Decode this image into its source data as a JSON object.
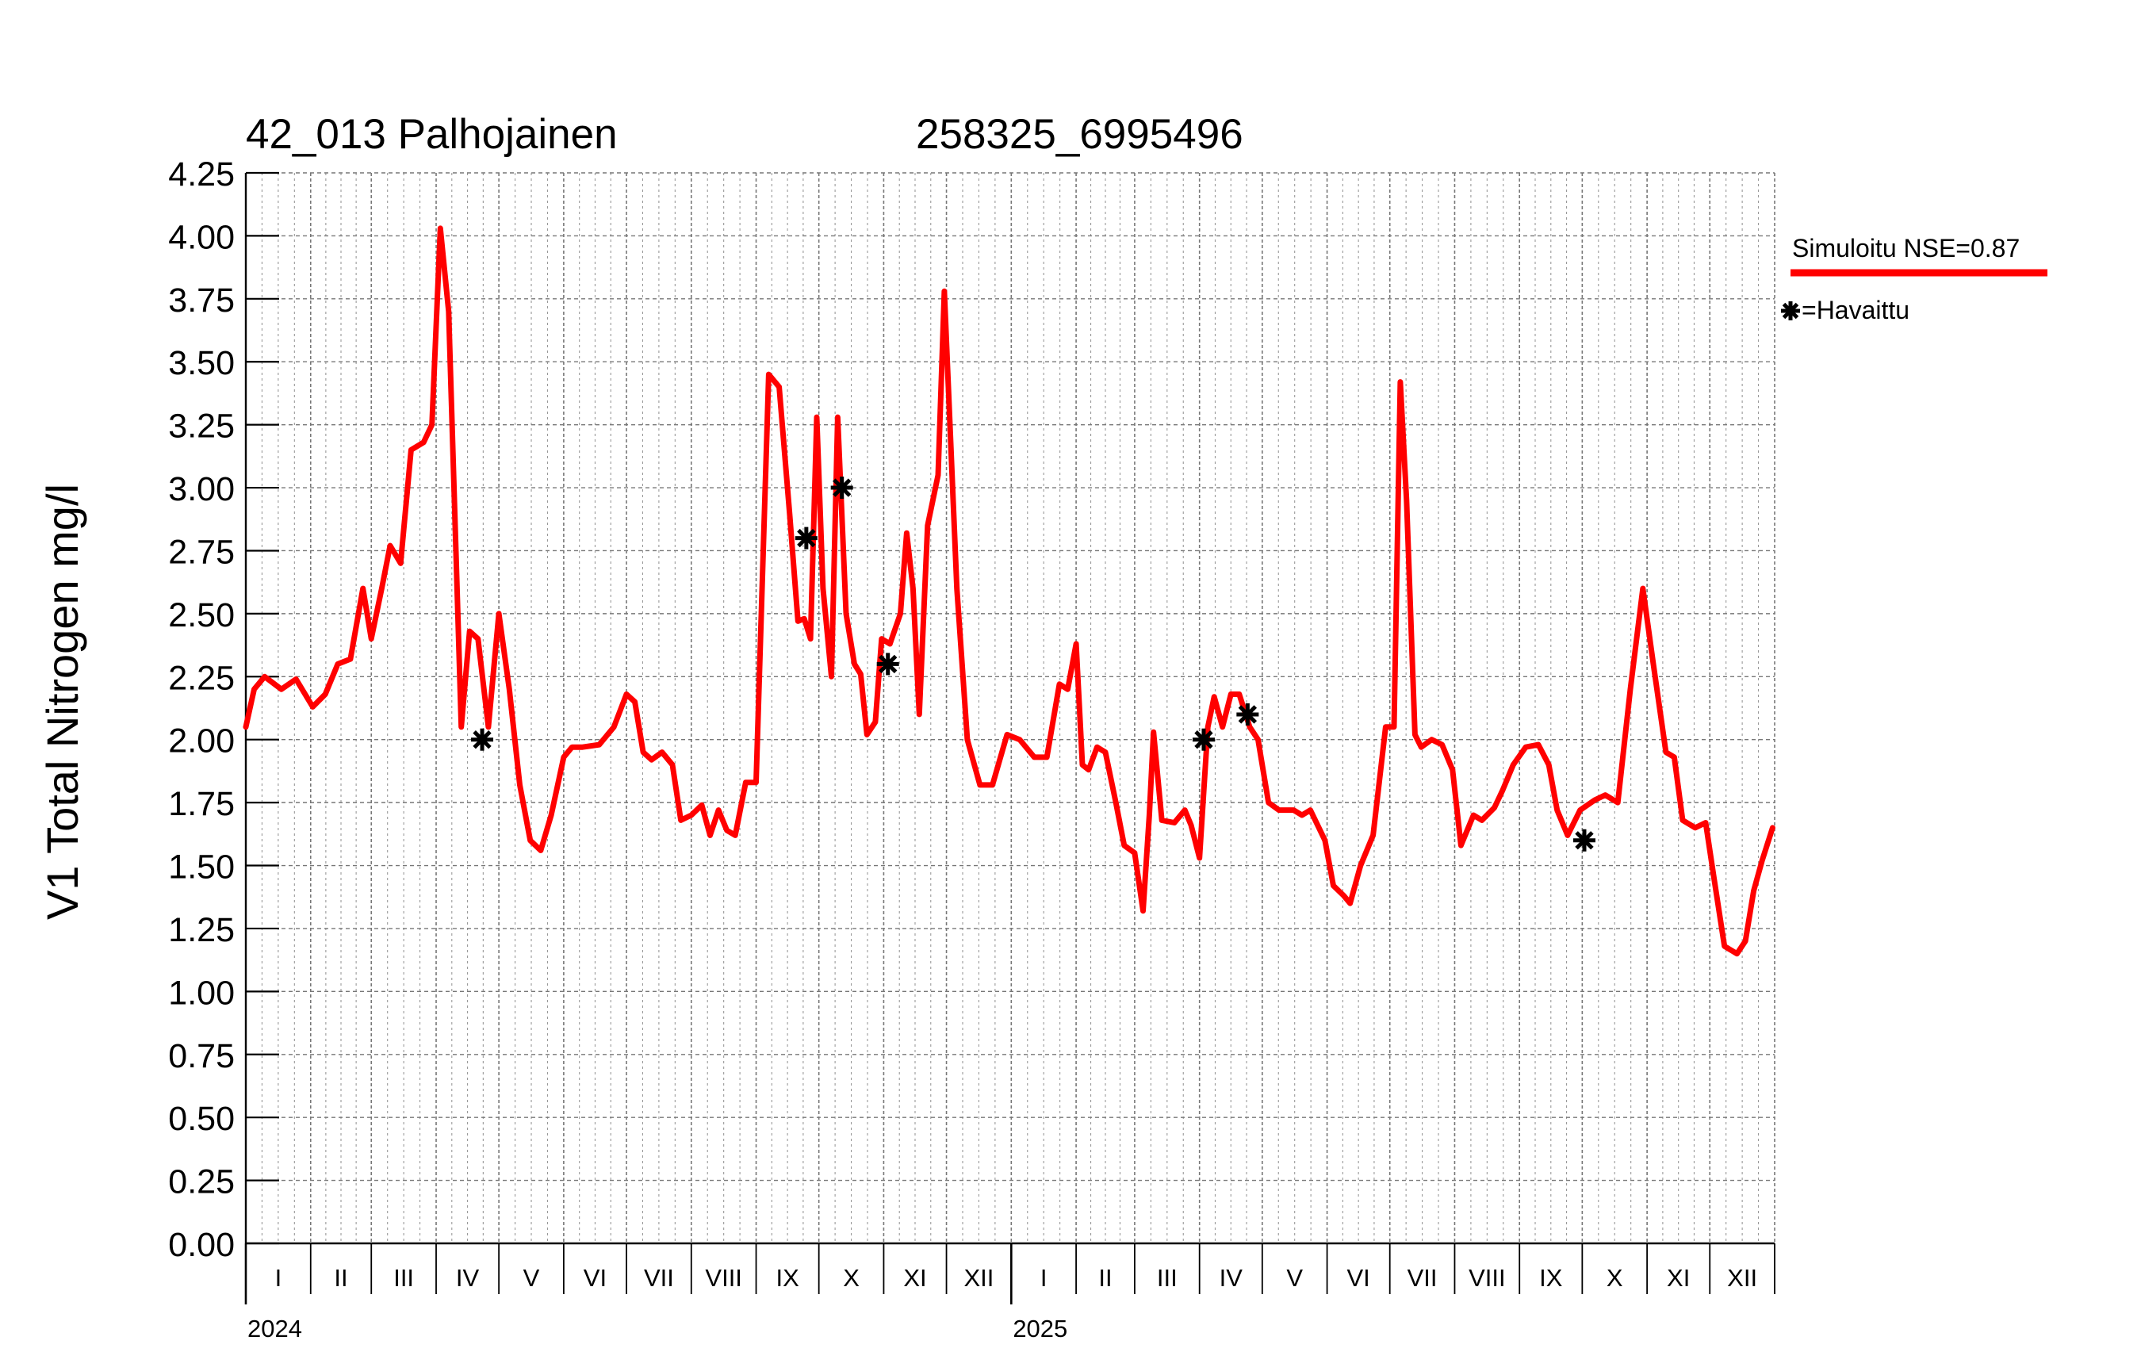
{
  "chart_data": {
    "type": "line",
    "title_left": "42_013 Palhojainen",
    "title_right": "258325_6995496",
    "ylabel": "V1 Total Nitrogen mg/l",
    "ylim": [
      0,
      4.25
    ],
    "y_ticks": [
      0.0,
      0.25,
      0.5,
      0.75,
      1.0,
      1.25,
      1.5,
      1.75,
      2.0,
      2.25,
      2.5,
      2.75,
      3.0,
      3.25,
      3.5,
      3.75,
      4.0,
      4.25
    ],
    "y_tick_labels": [
      "0.00",
      "0.25",
      "0.50",
      "0.75",
      "1.00",
      "1.25",
      "1.50",
      "1.75",
      "2.00",
      "2.25",
      "2.50",
      "2.75",
      "3.00",
      "3.25",
      "3.50",
      "3.75",
      "4.00",
      "4.25"
    ],
    "xlim": [
      "2024-01-01",
      "2025-12-31"
    ],
    "month_labels": [
      "I",
      "II",
      "III",
      "IV",
      "V",
      "VI",
      "VII",
      "VIII",
      "IX",
      "X",
      "XI",
      "XII",
      "I",
      "II",
      "III",
      "IV",
      "V",
      "VI",
      "VII",
      "VIII",
      "IX",
      "X",
      "XI",
      "XII"
    ],
    "year_labels": [
      "2024",
      "2025"
    ],
    "grid": true,
    "legend_position": "right",
    "series": [
      {
        "name": "Simuloitu NSE=0.87",
        "color": "#ff0000",
        "points": [
          [
            "2024-01-01",
            2.05
          ],
          [
            "2024-01-05",
            2.2
          ],
          [
            "2024-01-10",
            2.25
          ],
          [
            "2024-01-18",
            2.2
          ],
          [
            "2024-01-25",
            2.24
          ],
          [
            "2024-02-02",
            2.13
          ],
          [
            "2024-02-08",
            2.18
          ],
          [
            "2024-02-14",
            2.3
          ],
          [
            "2024-02-20",
            2.32
          ],
          [
            "2024-02-26",
            2.6
          ],
          [
            "2024-03-01",
            2.4
          ],
          [
            "2024-03-06",
            2.6
          ],
          [
            "2024-03-10",
            2.77
          ],
          [
            "2024-03-15",
            2.7
          ],
          [
            "2024-03-20",
            3.15
          ],
          [
            "2024-03-26",
            3.18
          ],
          [
            "2024-03-30",
            3.25
          ],
          [
            "2024-04-03",
            4.03
          ],
          [
            "2024-04-07",
            3.7
          ],
          [
            "2024-04-13",
            2.05
          ],
          [
            "2024-04-17",
            2.43
          ],
          [
            "2024-04-21",
            2.4
          ],
          [
            "2024-04-26",
            2.05
          ],
          [
            "2024-05-01",
            2.5
          ],
          [
            "2024-05-06",
            2.2
          ],
          [
            "2024-05-11",
            1.82
          ],
          [
            "2024-05-16",
            1.6
          ],
          [
            "2024-05-21",
            1.56
          ],
          [
            "2024-05-26",
            1.7
          ],
          [
            "2024-06-01",
            1.93
          ],
          [
            "2024-06-05",
            1.97
          ],
          [
            "2024-06-10",
            1.97
          ],
          [
            "2024-06-18",
            1.98
          ],
          [
            "2024-06-25",
            2.05
          ],
          [
            "2024-07-01",
            2.18
          ],
          [
            "2024-07-05",
            2.15
          ],
          [
            "2024-07-09",
            1.95
          ],
          [
            "2024-07-13",
            1.92
          ],
          [
            "2024-07-18",
            1.95
          ],
          [
            "2024-07-23",
            1.9
          ],
          [
            "2024-07-27",
            1.68
          ],
          [
            "2024-08-01",
            1.7
          ],
          [
            "2024-08-06",
            1.74
          ],
          [
            "2024-08-10",
            1.62
          ],
          [
            "2024-08-14",
            1.72
          ],
          [
            "2024-08-18",
            1.64
          ],
          [
            "2024-08-22",
            1.62
          ],
          [
            "2024-08-27",
            1.83
          ],
          [
            "2024-09-01",
            1.83
          ],
          [
            "2024-09-07",
            3.45
          ],
          [
            "2024-09-12",
            3.4
          ],
          [
            "2024-09-17",
            2.9
          ],
          [
            "2024-09-21",
            2.47
          ],
          [
            "2024-09-24",
            2.48
          ],
          [
            "2024-09-27",
            2.4
          ],
          [
            "2024-09-30",
            3.28
          ],
          [
            "2024-10-03",
            2.6
          ],
          [
            "2024-10-07",
            2.25
          ],
          [
            "2024-10-10",
            3.28
          ],
          [
            "2024-10-14",
            2.5
          ],
          [
            "2024-10-18",
            2.3
          ],
          [
            "2024-10-21",
            2.26
          ],
          [
            "2024-10-24",
            2.02
          ],
          [
            "2024-10-28",
            2.07
          ],
          [
            "2024-10-31",
            2.4
          ],
          [
            "2024-11-04",
            2.38
          ],
          [
            "2024-11-09",
            2.5
          ],
          [
            "2024-11-12",
            2.82
          ],
          [
            "2024-11-15",
            2.6
          ],
          [
            "2024-11-18",
            2.1
          ],
          [
            "2024-11-22",
            2.85
          ],
          [
            "2024-11-27",
            3.05
          ],
          [
            "2024-11-30",
            3.78
          ],
          [
            "2024-12-06",
            2.6
          ],
          [
            "2024-12-11",
            2.0
          ],
          [
            "2024-12-17",
            1.82
          ],
          [
            "2024-12-23",
            1.82
          ],
          [
            "2024-12-30",
            2.02
          ],
          [
            "2025-01-05",
            2.0
          ],
          [
            "2025-01-12",
            1.93
          ],
          [
            "2025-01-18",
            1.93
          ],
          [
            "2025-01-24",
            2.22
          ],
          [
            "2025-01-28",
            2.2
          ],
          [
            "2025-02-01",
            2.38
          ],
          [
            "2025-02-04",
            1.9
          ],
          [
            "2025-02-07",
            1.88
          ],
          [
            "2025-02-11",
            1.97
          ],
          [
            "2025-02-15",
            1.95
          ],
          [
            "2025-02-20",
            1.75
          ],
          [
            "2025-02-24",
            1.58
          ],
          [
            "2025-03-01",
            1.55
          ],
          [
            "2025-03-05",
            1.32
          ],
          [
            "2025-03-08",
            1.7
          ],
          [
            "2025-03-10",
            2.03
          ],
          [
            "2025-03-14",
            1.68
          ],
          [
            "2025-03-20",
            1.67
          ],
          [
            "2025-03-25",
            1.72
          ],
          [
            "2025-03-28",
            1.66
          ],
          [
            "2025-04-01",
            1.53
          ],
          [
            "2025-04-05",
            2.05
          ],
          [
            "2025-04-08",
            2.17
          ],
          [
            "2025-04-12",
            2.05
          ],
          [
            "2025-04-16",
            2.18
          ],
          [
            "2025-04-20",
            2.18
          ],
          [
            "2025-04-25",
            2.05
          ],
          [
            "2025-04-29",
            2.0
          ],
          [
            "2025-05-04",
            1.75
          ],
          [
            "2025-05-09",
            1.72
          ],
          [
            "2025-05-16",
            1.72
          ],
          [
            "2025-05-20",
            1.7
          ],
          [
            "2025-05-24",
            1.72
          ],
          [
            "2025-05-31",
            1.6
          ],
          [
            "2025-06-04",
            1.42
          ],
          [
            "2025-06-09",
            1.38
          ],
          [
            "2025-06-12",
            1.35
          ],
          [
            "2025-06-17",
            1.5
          ],
          [
            "2025-06-23",
            1.62
          ],
          [
            "2025-06-29",
            2.05
          ],
          [
            "2025-07-03",
            2.05
          ],
          [
            "2025-07-06",
            3.42
          ],
          [
            "2025-07-09",
            2.95
          ],
          [
            "2025-07-13",
            2.02
          ],
          [
            "2025-07-16",
            1.97
          ],
          [
            "2025-07-21",
            2.0
          ],
          [
            "2025-07-26",
            1.98
          ],
          [
            "2025-07-31",
            1.88
          ],
          [
            "2025-08-04",
            1.58
          ],
          [
            "2025-08-10",
            1.7
          ],
          [
            "2025-08-14",
            1.68
          ],
          [
            "2025-08-20",
            1.73
          ],
          [
            "2025-08-24",
            1.8
          ],
          [
            "2025-08-29",
            1.9
          ],
          [
            "2025-09-04",
            1.97
          ],
          [
            "2025-09-10",
            1.98
          ],
          [
            "2025-09-15",
            1.9
          ],
          [
            "2025-09-19",
            1.72
          ],
          [
            "2025-09-24",
            1.62
          ],
          [
            "2025-09-30",
            1.72
          ],
          [
            "2025-10-07",
            1.76
          ],
          [
            "2025-10-12",
            1.78
          ],
          [
            "2025-10-18",
            1.75
          ],
          [
            "2025-10-24",
            2.2
          ],
          [
            "2025-10-30",
            2.6
          ],
          [
            "2025-11-04",
            2.3
          ],
          [
            "2025-11-10",
            1.95
          ],
          [
            "2025-11-14",
            1.93
          ],
          [
            "2025-11-18",
            1.68
          ],
          [
            "2025-11-24",
            1.65
          ],
          [
            "2025-11-29",
            1.67
          ],
          [
            "2025-12-03",
            1.45
          ],
          [
            "2025-12-08",
            1.18
          ],
          [
            "2025-12-14",
            1.15
          ],
          [
            "2025-12-18",
            1.2
          ],
          [
            "2025-12-22",
            1.4
          ],
          [
            "2025-12-26",
            1.52
          ],
          [
            "2025-12-31",
            1.65
          ]
        ]
      },
      {
        "name": "=Havaittu",
        "color": "#000000",
        "marker": "star",
        "points": [
          [
            "2024-04-23",
            2.0
          ],
          [
            "2024-09-25",
            2.8
          ],
          [
            "2024-10-12",
            3.0
          ],
          [
            "2024-11-03",
            2.3
          ],
          [
            "2025-04-03",
            2.0
          ],
          [
            "2025-04-24",
            2.1
          ],
          [
            "2025-10-02",
            1.6
          ]
        ]
      }
    ]
  }
}
